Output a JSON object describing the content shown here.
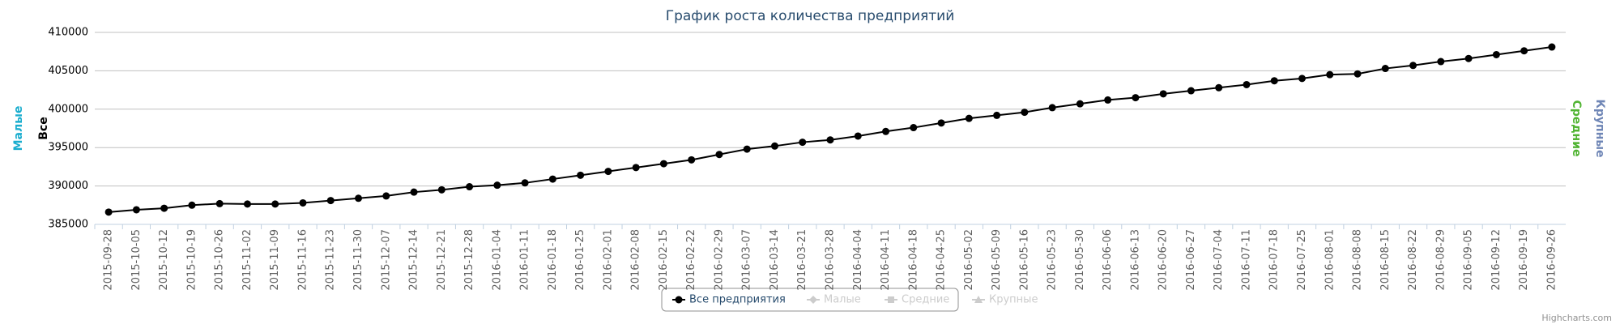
{
  "chart_data": {
    "type": "line",
    "title": "График роста количества предприятий",
    "categories": [
      "2015-09-28",
      "2015-10-05",
      "2015-10-12",
      "2015-10-19",
      "2015-10-26",
      "2015-11-02",
      "2015-11-09",
      "2015-11-16",
      "2015-11-23",
      "2015-11-30",
      "2015-12-07",
      "2015-12-14",
      "2015-12-21",
      "2015-12-28",
      "2016-01-04",
      "2016-01-11",
      "2016-01-18",
      "2016-01-25",
      "2016-02-01",
      "2016-02-08",
      "2016-02-15",
      "2016-02-22",
      "2016-02-29",
      "2016-03-07",
      "2016-03-14",
      "2016-03-21",
      "2016-03-28",
      "2016-04-04",
      "2016-04-11",
      "2016-04-18",
      "2016-04-25",
      "2016-05-02",
      "2016-05-09",
      "2016-05-16",
      "2016-05-23",
      "2016-05-30",
      "2016-06-06",
      "2016-06-13",
      "2016-06-20",
      "2016-06-27",
      "2016-07-04",
      "2016-07-11",
      "2016-07-18",
      "2016-07-25",
      "2016-08-01",
      "2016-08-08",
      "2016-08-15",
      "2016-08-22",
      "2016-08-29",
      "2016-09-05",
      "2016-09-12",
      "2016-09-19",
      "2016-09-26"
    ],
    "series": [
      {
        "name": "Все предприятия",
        "color": "#000000",
        "marker": "circle",
        "visible": true,
        "values": [
          386600,
          386900,
          387100,
          387500,
          387700,
          387650,
          387650,
          387800,
          388100,
          388400,
          388700,
          389200,
          389500,
          389900,
          390100,
          390400,
          390900,
          391400,
          391900,
          392400,
          392900,
          393400,
          394100,
          394800,
          395200,
          395700,
          396000,
          396500,
          397100,
          397600,
          398200,
          398800,
          399200,
          399600,
          400200,
          400700,
          401200,
          401500,
          402000,
          402400,
          402800,
          403200,
          403700,
          404000,
          404500,
          404600,
          405300,
          405700,
          406200,
          406600,
          407100,
          407600,
          408100
        ]
      },
      {
        "name": "Малые",
        "color": "#1aadce",
        "marker": "diamond",
        "visible": false
      },
      {
        "name": "Средние",
        "color": "#50b432",
        "marker": "square",
        "visible": false
      },
      {
        "name": "Крупные",
        "color": "#6f86b6",
        "marker": "triangle",
        "visible": false
      }
    ],
    "axis_titles": [
      {
        "title": "Малые",
        "color": "#1aadce",
        "side": "left"
      },
      {
        "title": "Все",
        "color": "#000000",
        "side": "left"
      },
      {
        "title": "Средние",
        "color": "#50b432",
        "side": "right"
      },
      {
        "title": "Крупные",
        "color": "#6f86b6",
        "side": "right"
      }
    ],
    "ylim": [
      385000,
      410000
    ],
    "yticks": [
      385000,
      390000,
      395000,
      400000,
      405000,
      410000
    ],
    "grid": true,
    "legend": "bottom",
    "credits": "Highcharts.com"
  }
}
